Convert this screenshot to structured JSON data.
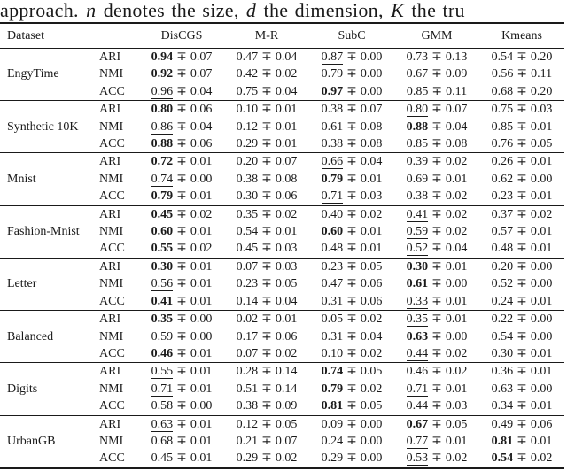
{
  "caption": {
    "pre": "approach. ",
    "var_n": "n",
    "mid1": " denotes the size, ",
    "var_d": "d",
    "mid2": " the dimension, ",
    "var_k": "K",
    "post": " the tru"
  },
  "table": {
    "pm": "∓",
    "columns": {
      "dataset": "Dataset",
      "methods": [
        "DisCGS",
        "M-R",
        "SubC",
        "GMM",
        "Kmeans"
      ]
    },
    "groups": [
      {
        "dataset": "EngyTime",
        "rows": [
          {
            "metric": "ARI",
            "cells": [
              {
                "v": "0.94",
                "e": "0.07",
                "s": "b"
              },
              {
                "v": "0.47",
                "e": "0.04",
                "s": ""
              },
              {
                "v": "0.87",
                "e": "0.00",
                "s": "u"
              },
              {
                "v": "0.73",
                "e": "0.13",
                "s": ""
              },
              {
                "v": "0.54",
                "e": "0.20",
                "s": ""
              }
            ]
          },
          {
            "metric": "NMI",
            "cells": [
              {
                "v": "0.92",
                "e": "0.07",
                "s": "b"
              },
              {
                "v": "0.42",
                "e": "0.02",
                "s": ""
              },
              {
                "v": "0.79",
                "e": "0.00",
                "s": "u"
              },
              {
                "v": "0.67",
                "e": "0.09",
                "s": ""
              },
              {
                "v": "0.56",
                "e": "0.11",
                "s": ""
              }
            ]
          },
          {
            "metric": "ACC",
            "cells": [
              {
                "v": "0.96",
                "e": "0.04",
                "s": "u"
              },
              {
                "v": "0.75",
                "e": "0.04",
                "s": ""
              },
              {
                "v": "0.97",
                "e": "0.00",
                "s": "b"
              },
              {
                "v": "0.85",
                "e": "0.11",
                "s": ""
              },
              {
                "v": "0.68",
                "e": "0.20",
                "s": ""
              }
            ]
          }
        ]
      },
      {
        "dataset": "Synthetic 10K",
        "rows": [
          {
            "metric": "ARI",
            "cells": [
              {
                "v": "0.80",
                "e": "0.06",
                "s": "b"
              },
              {
                "v": "0.10",
                "e": "0.01",
                "s": ""
              },
              {
                "v": "0.38",
                "e": "0.07",
                "s": ""
              },
              {
                "v": "0.80",
                "e": "0.07",
                "s": "u"
              },
              {
                "v": "0.75",
                "e": "0.03",
                "s": ""
              }
            ]
          },
          {
            "metric": "NMI",
            "cells": [
              {
                "v": "0.86",
                "e": "0.04",
                "s": "u"
              },
              {
                "v": "0.12",
                "e": "0.01",
                "s": ""
              },
              {
                "v": "0.61",
                "e": "0.08",
                "s": ""
              },
              {
                "v": "0.88",
                "e": "0.04",
                "s": "b"
              },
              {
                "v": "0.85",
                "e": "0.01",
                "s": ""
              }
            ]
          },
          {
            "metric": "ACC",
            "cells": [
              {
                "v": "0.88",
                "e": "0.06",
                "s": "b"
              },
              {
                "v": "0.29",
                "e": "0.01",
                "s": ""
              },
              {
                "v": "0.38",
                "e": "0.08",
                "s": ""
              },
              {
                "v": "0.85",
                "e": "0.08",
                "s": "u"
              },
              {
                "v": "0.76",
                "e": "0.05",
                "s": ""
              }
            ]
          }
        ]
      },
      {
        "dataset": "Mnist",
        "rows": [
          {
            "metric": "ARI",
            "cells": [
              {
                "v": "0.72",
                "e": "0.01",
                "s": "b"
              },
              {
                "v": "0.20",
                "e": "0.07",
                "s": ""
              },
              {
                "v": "0.66",
                "e": "0.04",
                "s": "u"
              },
              {
                "v": "0.39",
                "e": "0.02",
                "s": ""
              },
              {
                "v": "0.26",
                "e": "0.01",
                "s": ""
              }
            ]
          },
          {
            "metric": "NMI",
            "cells": [
              {
                "v": "0.74",
                "e": "0.00",
                "s": "u"
              },
              {
                "v": "0.38",
                "e": "0.08",
                "s": ""
              },
              {
                "v": "0.79",
                "e": "0.01",
                "s": "b"
              },
              {
                "v": "0.69",
                "e": "0.01",
                "s": ""
              },
              {
                "v": "0.62",
                "e": "0.00",
                "s": ""
              }
            ]
          },
          {
            "metric": "ACC",
            "cells": [
              {
                "v": "0.79",
                "e": "0.01",
                "s": "b"
              },
              {
                "v": "0.30",
                "e": "0.06",
                "s": ""
              },
              {
                "v": "0.71",
                "e": "0.03",
                "s": "u"
              },
              {
                "v": "0.38",
                "e": "0.02",
                "s": ""
              },
              {
                "v": "0.23",
                "e": "0.01",
                "s": ""
              }
            ]
          }
        ]
      },
      {
        "dataset": "Fashion-Mnist",
        "rows": [
          {
            "metric": "ARI",
            "cells": [
              {
                "v": "0.45",
                "e": "0.02",
                "s": "b"
              },
              {
                "v": "0.35",
                "e": "0.02",
                "s": ""
              },
              {
                "v": "0.40",
                "e": "0.02",
                "s": ""
              },
              {
                "v": "0.41",
                "e": "0.02",
                "s": "u"
              },
              {
                "v": "0.37",
                "e": "0.02",
                "s": ""
              }
            ]
          },
          {
            "metric": "NMI",
            "cells": [
              {
                "v": "0.60",
                "e": "0.01",
                "s": "b"
              },
              {
                "v": "0.54",
                "e": "0.01",
                "s": ""
              },
              {
                "v": "0.60",
                "e": "0.01",
                "s": "b"
              },
              {
                "v": "0.59",
                "e": "0.02",
                "s": "u"
              },
              {
                "v": "0.57",
                "e": "0.01",
                "s": ""
              }
            ]
          },
          {
            "metric": "ACC",
            "cells": [
              {
                "v": "0.55",
                "e": "0.02",
                "s": "b"
              },
              {
                "v": "0.45",
                "e": "0.03",
                "s": ""
              },
              {
                "v": "0.48",
                "e": "0.01",
                "s": ""
              },
              {
                "v": "0.52",
                "e": "0.04",
                "s": "u"
              },
              {
                "v": "0.48",
                "e": "0.01",
                "s": ""
              }
            ]
          }
        ]
      },
      {
        "dataset": "Letter",
        "rows": [
          {
            "metric": "ARI",
            "cells": [
              {
                "v": "0.30",
                "e": "0.01",
                "s": "b"
              },
              {
                "v": "0.07",
                "e": "0.03",
                "s": ""
              },
              {
                "v": "0.23",
                "e": "0.05",
                "s": "u"
              },
              {
                "v": "0.30",
                "e": "0.01",
                "s": "b"
              },
              {
                "v": "0.20",
                "e": "0.00",
                "s": ""
              }
            ]
          },
          {
            "metric": "NMI",
            "cells": [
              {
                "v": "0.56",
                "e": "0.01",
                "s": "u"
              },
              {
                "v": "0.23",
                "e": "0.05",
                "s": ""
              },
              {
                "v": "0.47",
                "e": "0.06",
                "s": ""
              },
              {
                "v": "0.61",
                "e": "0.00",
                "s": "b"
              },
              {
                "v": "0.52",
                "e": "0.00",
                "s": ""
              }
            ]
          },
          {
            "metric": "ACC",
            "cells": [
              {
                "v": "0.41",
                "e": "0.01",
                "s": "b"
              },
              {
                "v": "0.14",
                "e": "0.04",
                "s": ""
              },
              {
                "v": "0.31",
                "e": "0.06",
                "s": ""
              },
              {
                "v": "0.33",
                "e": "0.01",
                "s": "u"
              },
              {
                "v": "0.24",
                "e": "0.01",
                "s": ""
              }
            ]
          }
        ]
      },
      {
        "dataset": "Balanced",
        "rows": [
          {
            "metric": "ARI",
            "cells": [
              {
                "v": "0.35",
                "e": "0.00",
                "s": "b"
              },
              {
                "v": "0.02",
                "e": "0.01",
                "s": ""
              },
              {
                "v": "0.05",
                "e": "0.02",
                "s": ""
              },
              {
                "v": "0.35",
                "e": "0.01",
                "s": "u"
              },
              {
                "v": "0.22",
                "e": "0.00",
                "s": ""
              }
            ]
          },
          {
            "metric": "NMI",
            "cells": [
              {
                "v": "0.59",
                "e": "0.00",
                "s": "u"
              },
              {
                "v": "0.17",
                "e": "0.06",
                "s": ""
              },
              {
                "v": "0.31",
                "e": "0.04",
                "s": ""
              },
              {
                "v": "0.63",
                "e": "0.00",
                "s": "b"
              },
              {
                "v": "0.54",
                "e": "0.00",
                "s": ""
              }
            ]
          },
          {
            "metric": "ACC",
            "cells": [
              {
                "v": "0.46",
                "e": "0.01",
                "s": "b"
              },
              {
                "v": "0.07",
                "e": "0.02",
                "s": ""
              },
              {
                "v": "0.10",
                "e": "0.02",
                "s": ""
              },
              {
                "v": "0.44",
                "e": "0.02",
                "s": "u"
              },
              {
                "v": "0.30",
                "e": "0.01",
                "s": ""
              }
            ]
          }
        ]
      },
      {
        "dataset": "Digits",
        "rows": [
          {
            "metric": "ARI",
            "cells": [
              {
                "v": "0.55",
                "e": "0.01",
                "s": "u"
              },
              {
                "v": "0.28",
                "e": "0.14",
                "s": ""
              },
              {
                "v": "0.74",
                "e": "0.05",
                "s": "b"
              },
              {
                "v": "0.46",
                "e": "0.02",
                "s": ""
              },
              {
                "v": "0.36",
                "e": "0.01",
                "s": ""
              }
            ]
          },
          {
            "metric": "NMI",
            "cells": [
              {
                "v": "0.71",
                "e": "0.01",
                "s": "u"
              },
              {
                "v": "0.51",
                "e": "0.14",
                "s": ""
              },
              {
                "v": "0.79",
                "e": "0.02",
                "s": "b"
              },
              {
                "v": "0.71",
                "e": "0.01",
                "s": "u"
              },
              {
                "v": "0.63",
                "e": "0.00",
                "s": ""
              }
            ]
          },
          {
            "metric": "ACC",
            "cells": [
              {
                "v": "0.58",
                "e": "0.00",
                "s": "u"
              },
              {
                "v": "0.38",
                "e": "0.09",
                "s": ""
              },
              {
                "v": "0.81",
                "e": "0.05",
                "s": "b"
              },
              {
                "v": "0.44",
                "e": "0.03",
                "s": ""
              },
              {
                "v": "0.34",
                "e": "0.01",
                "s": ""
              }
            ]
          }
        ]
      },
      {
        "dataset": "UrbanGB",
        "rows": [
          {
            "metric": "ARI",
            "cells": [
              {
                "v": "0.63",
                "e": "0.01",
                "s": "u"
              },
              {
                "v": "0.12",
                "e": "0.05",
                "s": ""
              },
              {
                "v": "0.09",
                "e": "0.00",
                "s": ""
              },
              {
                "v": "0.67",
                "e": "0.05",
                "s": "b"
              },
              {
                "v": "0.49",
                "e": "0.06",
                "s": ""
              }
            ]
          },
          {
            "metric": "NMI",
            "cells": [
              {
                "v": "0.68",
                "e": "0.01",
                "s": ""
              },
              {
                "v": "0.21",
                "e": "0.07",
                "s": ""
              },
              {
                "v": "0.24",
                "e": "0.00",
                "s": ""
              },
              {
                "v": "0.77",
                "e": "0.01",
                "s": "u"
              },
              {
                "v": "0.81",
                "e": "0.01",
                "s": "b"
              }
            ]
          },
          {
            "metric": "ACC",
            "cells": [
              {
                "v": "0.45",
                "e": "0.01",
                "s": ""
              },
              {
                "v": "0.29",
                "e": "0.02",
                "s": ""
              },
              {
                "v": "0.29",
                "e": "0.00",
                "s": ""
              },
              {
                "v": "0.53",
                "e": "0.02",
                "s": "u"
              },
              {
                "v": "0.54",
                "e": "0.02",
                "s": "b"
              }
            ]
          }
        ]
      }
    ]
  }
}
